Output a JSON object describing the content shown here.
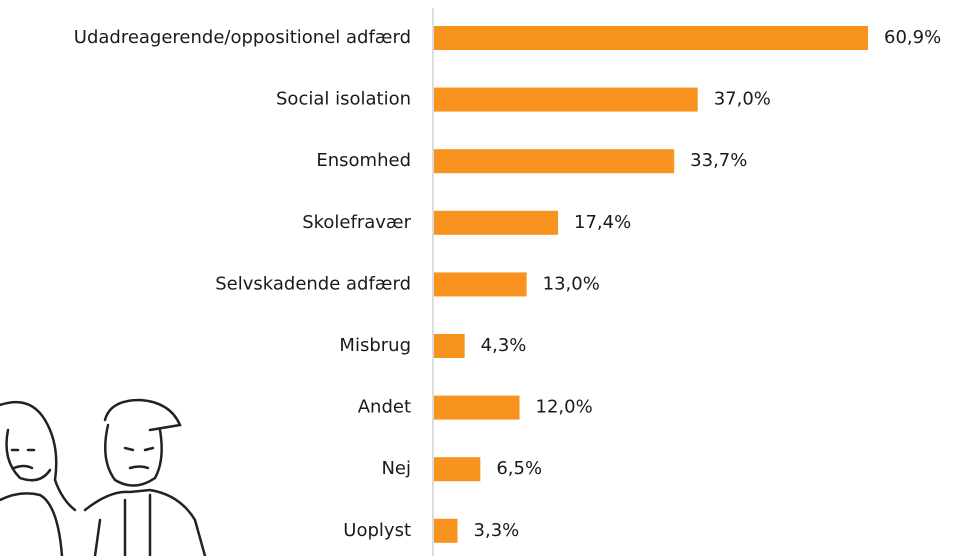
{
  "chart_data": {
    "type": "bar",
    "orientation": "horizontal",
    "categories": [
      "Udadreagerende/oppositionel adfærd",
      "Social isolation",
      "Ensomhed",
      "Skolefravær",
      "Selvskadende adfærd",
      "Misbrug",
      "Andet",
      "Nej",
      "Uoplyst"
    ],
    "values": [
      60.9,
      37.0,
      33.7,
      17.4,
      13.0,
      4.3,
      12.0,
      6.5,
      3.3
    ],
    "value_labels": [
      "60,9%",
      "37,0%",
      "33,7%",
      "17,4%",
      "13,0%",
      "4,3%",
      "12,0%",
      "6,5%",
      "3,3%"
    ],
    "color": "#f7931e"
  }
}
